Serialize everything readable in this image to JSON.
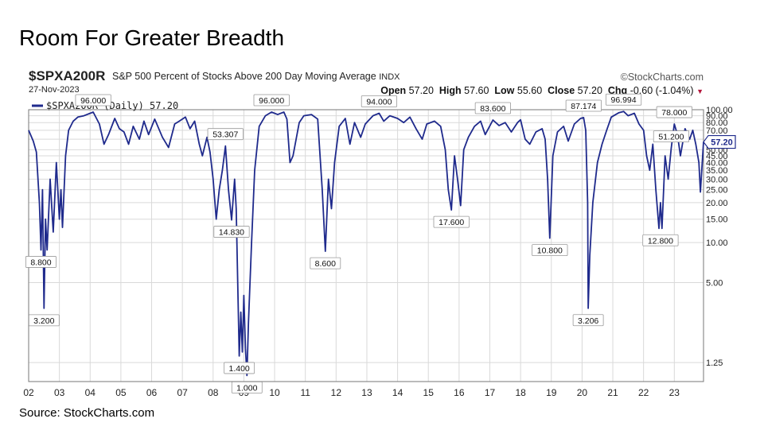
{
  "slide_title": "Room For Greater Breadth",
  "source_note": "Source: StockCharts.com",
  "header": {
    "symbol": "$SPXA200R",
    "description": "S&P 500 Percent of Stocks Above 200 Day Moving Average",
    "exchange": "INDX",
    "brand": "©StockCharts.com",
    "date": "27-Nov-2023",
    "open_label": "Open",
    "open_value": "57.20",
    "high_label": "High",
    "high_value": "57.60",
    "low_label": "Low",
    "low_value": "55.60",
    "close_label": "Close",
    "close_value": "57.20",
    "chg_label": "Chg",
    "chg_value": "-0.60 (-1.04%)",
    "chg_arrow": "▼"
  },
  "legend": "$SPXA200R (Daily) 57.20",
  "colors": {
    "line": "#1f2a8c",
    "grid": "#d9d9d9",
    "label_border": "#999999",
    "badge_bg": "#1f2a8c"
  },
  "chart_data": {
    "type": "line",
    "title": "S&P 500 Percent of Stocks Above 200 Day Moving Average",
    "series_name": "$SPXA200R (Daily)",
    "y_scale": "log",
    "ylim": [
      0.9,
      100
    ],
    "xlim": [
      2002.0,
      2023.95
    ],
    "x_ticks": [
      {
        "value": 2002,
        "label": "02"
      },
      {
        "value": 2003,
        "label": "03"
      },
      {
        "value": 2004,
        "label": "04"
      },
      {
        "value": 2005,
        "label": "05"
      },
      {
        "value": 2006,
        "label": "06"
      },
      {
        "value": 2007,
        "label": "07"
      },
      {
        "value": 2008,
        "label": "08"
      },
      {
        "value": 2009,
        "label": "09"
      },
      {
        "value": 2010,
        "label": "10"
      },
      {
        "value": 2011,
        "label": "11"
      },
      {
        "value": 2012,
        "label": "12"
      },
      {
        "value": 2013,
        "label": "13"
      },
      {
        "value": 2014,
        "label": "14"
      },
      {
        "value": 2015,
        "label": "15"
      },
      {
        "value": 2016,
        "label": "16"
      },
      {
        "value": 2017,
        "label": "17"
      },
      {
        "value": 2018,
        "label": "18"
      },
      {
        "value": 2019,
        "label": "19"
      },
      {
        "value": 2020,
        "label": "20"
      },
      {
        "value": 2021,
        "label": "21"
      },
      {
        "value": 2022,
        "label": "22"
      },
      {
        "value": 2023,
        "label": "23"
      }
    ],
    "y_ticks": [
      {
        "value": 100,
        "label": "100.00"
      },
      {
        "value": 90,
        "label": "90.00"
      },
      {
        "value": 80,
        "label": "80.00"
      },
      {
        "value": 70,
        "label": "70.00"
      },
      {
        "value": 60,
        "label": "60.00"
      },
      {
        "value": 50,
        "label": "50.00"
      },
      {
        "value": 45,
        "label": "45.00"
      },
      {
        "value": 40,
        "label": "40.00"
      },
      {
        "value": 35,
        "label": "35.00"
      },
      {
        "value": 30,
        "label": "30.00"
      },
      {
        "value": 25,
        "label": "25.00"
      },
      {
        "value": 20,
        "label": "20.00"
      },
      {
        "value": 15,
        "label": "15.00"
      },
      {
        "value": 10,
        "label": "10.00"
      },
      {
        "value": 5,
        "label": "5.00"
      },
      {
        "value": 1.25,
        "label": "1.25"
      }
    ],
    "points": [
      [
        2002.0,
        70
      ],
      [
        2002.15,
        58
      ],
      [
        2002.25,
        48
      ],
      [
        2002.35,
        20
      ],
      [
        2002.4,
        8.8
      ],
      [
        2002.45,
        25
      ],
      [
        2002.5,
        3.2
      ],
      [
        2002.55,
        15
      ],
      [
        2002.6,
        8.8
      ],
      [
        2002.7,
        30
      ],
      [
        2002.8,
        12
      ],
      [
        2002.9,
        40
      ],
      [
        2003.0,
        15
      ],
      [
        2003.05,
        25
      ],
      [
        2003.1,
        13
      ],
      [
        2003.2,
        45
      ],
      [
        2003.3,
        70
      ],
      [
        2003.45,
        82
      ],
      [
        2003.6,
        88
      ],
      [
        2003.8,
        90
      ],
      [
        2004.0,
        94
      ],
      [
        2004.1,
        96
      ],
      [
        2004.3,
        78
      ],
      [
        2004.45,
        55
      ],
      [
        2004.6,
        65
      ],
      [
        2004.8,
        86
      ],
      [
        2004.95,
        72
      ],
      [
        2005.1,
        68
      ],
      [
        2005.25,
        55
      ],
      [
        2005.4,
        75
      ],
      [
        2005.6,
        60
      ],
      [
        2005.75,
        82
      ],
      [
        2005.9,
        65
      ],
      [
        2006.1,
        85
      ],
      [
        2006.35,
        62
      ],
      [
        2006.55,
        52
      ],
      [
        2006.75,
        78
      ],
      [
        2006.9,
        82
      ],
      [
        2007.1,
        88
      ],
      [
        2007.25,
        72
      ],
      [
        2007.4,
        82
      ],
      [
        2007.55,
        55
      ],
      [
        2007.65,
        45
      ],
      [
        2007.8,
        62
      ],
      [
        2007.9,
        48
      ],
      [
        2008.0,
        30
      ],
      [
        2008.1,
        15
      ],
      [
        2008.2,
        25
      ],
      [
        2008.3,
        35
      ],
      [
        2008.4,
        53.3
      ],
      [
        2008.5,
        25
      ],
      [
        2008.6,
        14.8
      ],
      [
        2008.7,
        30
      ],
      [
        2008.75,
        18
      ],
      [
        2008.8,
        5
      ],
      [
        2008.85,
        1.4
      ],
      [
        2008.9,
        3
      ],
      [
        2008.95,
        1.5
      ],
      [
        2009.0,
        4
      ],
      [
        2009.05,
        1.6
      ],
      [
        2009.1,
        1.0
      ],
      [
        2009.15,
        2.5
      ],
      [
        2009.25,
        10
      ],
      [
        2009.35,
        35
      ],
      [
        2009.5,
        75
      ],
      [
        2009.7,
        90
      ],
      [
        2009.9,
        96
      ],
      [
        2010.1,
        92
      ],
      [
        2010.3,
        96
      ],
      [
        2010.4,
        85
      ],
      [
        2010.5,
        40
      ],
      [
        2010.6,
        45
      ],
      [
        2010.8,
        80
      ],
      [
        2010.95,
        90
      ],
      [
        2011.2,
        92
      ],
      [
        2011.4,
        85
      ],
      [
        2011.55,
        25
      ],
      [
        2011.65,
        8.6
      ],
      [
        2011.75,
        30
      ],
      [
        2011.85,
        18
      ],
      [
        2011.95,
        40
      ],
      [
        2012.1,
        75
      ],
      [
        2012.3,
        86
      ],
      [
        2012.45,
        55
      ],
      [
        2012.6,
        80
      ],
      [
        2012.8,
        62
      ],
      [
        2012.95,
        78
      ],
      [
        2013.2,
        90
      ],
      [
        2013.4,
        94
      ],
      [
        2013.55,
        82
      ],
      [
        2013.75,
        90
      ],
      [
        2014.0,
        86
      ],
      [
        2014.2,
        80
      ],
      [
        2014.4,
        88
      ],
      [
        2014.6,
        72
      ],
      [
        2014.8,
        60
      ],
      [
        2014.95,
        78
      ],
      [
        2015.2,
        82
      ],
      [
        2015.4,
        75
      ],
      [
        2015.55,
        50
      ],
      [
        2015.65,
        25
      ],
      [
        2015.75,
        17.6
      ],
      [
        2015.85,
        45
      ],
      [
        2015.95,
        30
      ],
      [
        2016.05,
        19
      ],
      [
        2016.15,
        50
      ],
      [
        2016.3,
        62
      ],
      [
        2016.5,
        75
      ],
      [
        2016.7,
        82
      ],
      [
        2016.85,
        65
      ],
      [
        2016.95,
        72
      ],
      [
        2017.1,
        83.6
      ],
      [
        2017.3,
        76
      ],
      [
        2017.5,
        80
      ],
      [
        2017.7,
        68
      ],
      [
        2017.9,
        80
      ],
      [
        2018.0,
        84
      ],
      [
        2018.15,
        60
      ],
      [
        2018.3,
        55
      ],
      [
        2018.5,
        68
      ],
      [
        2018.7,
        72
      ],
      [
        2018.8,
        60
      ],
      [
        2018.88,
        30
      ],
      [
        2018.95,
        10.8
      ],
      [
        2019.05,
        45
      ],
      [
        2019.2,
        68
      ],
      [
        2019.4,
        75
      ],
      [
        2019.55,
        58
      ],
      [
        2019.75,
        78
      ],
      [
        2019.95,
        86
      ],
      [
        2020.05,
        87.2
      ],
      [
        2020.12,
        70
      ],
      [
        2020.18,
        20
      ],
      [
        2020.2,
        3.2
      ],
      [
        2020.25,
        8
      ],
      [
        2020.35,
        20
      ],
      [
        2020.5,
        40
      ],
      [
        2020.65,
        55
      ],
      [
        2020.8,
        70
      ],
      [
        2020.95,
        88
      ],
      [
        2021.2,
        95
      ],
      [
        2021.35,
        97
      ],
      [
        2021.5,
        90
      ],
      [
        2021.7,
        94
      ],
      [
        2021.85,
        78
      ],
      [
        2022.0,
        70
      ],
      [
        2022.1,
        45
      ],
      [
        2022.2,
        35
      ],
      [
        2022.3,
        55
      ],
      [
        2022.4,
        25
      ],
      [
        2022.5,
        12.8
      ],
      [
        2022.55,
        20
      ],
      [
        2022.6,
        12.8
      ],
      [
        2022.7,
        45
      ],
      [
        2022.8,
        30
      ],
      [
        2022.9,
        51.2
      ],
      [
        2023.0,
        78
      ],
      [
        2023.1,
        65
      ],
      [
        2023.2,
        45
      ],
      [
        2023.35,
        72
      ],
      [
        2023.5,
        60
      ],
      [
        2023.6,
        70
      ],
      [
        2023.7,
        55
      ],
      [
        2023.8,
        40
      ],
      [
        2023.85,
        24
      ],
      [
        2023.95,
        57.2
      ]
    ],
    "annotations": [
      {
        "x": 2002.4,
        "y": 8.8,
        "label": "8.800",
        "pos": "below"
      },
      {
        "x": 2002.5,
        "y": 3.2,
        "label": "3.200",
        "pos": "below"
      },
      {
        "x": 2004.1,
        "y": 96,
        "label": "96.000",
        "pos": "above"
      },
      {
        "x": 2008.4,
        "y": 53.3,
        "label": "53.307",
        "pos": "above"
      },
      {
        "x": 2008.6,
        "y": 14.83,
        "label": "14.830",
        "pos": "below"
      },
      {
        "x": 2008.85,
        "y": 1.4,
        "label": "1.400",
        "pos": "below"
      },
      {
        "x": 2009.1,
        "y": 1.0,
        "label": "1.000",
        "pos": "below"
      },
      {
        "x": 2009.9,
        "y": 96,
        "label": "96.000",
        "pos": "above"
      },
      {
        "x": 2011.65,
        "y": 8.6,
        "label": "8.600",
        "pos": "below"
      },
      {
        "x": 2013.4,
        "y": 94,
        "label": "94.000",
        "pos": "above"
      },
      {
        "x": 2015.75,
        "y": 17.6,
        "label": "17.600",
        "pos": "below"
      },
      {
        "x": 2017.1,
        "y": 83.6,
        "label": "83.600",
        "pos": "above"
      },
      {
        "x": 2018.95,
        "y": 10.8,
        "label": "10.800",
        "pos": "below"
      },
      {
        "x": 2020.05,
        "y": 87.174,
        "label": "87.174",
        "pos": "above"
      },
      {
        "x": 2020.2,
        "y": 3.206,
        "label": "3.206",
        "pos": "below"
      },
      {
        "x": 2021.35,
        "y": 96.994,
        "label": "96.994",
        "pos": "above"
      },
      {
        "x": 2022.55,
        "y": 12.8,
        "label": "12.800",
        "pos": "below"
      },
      {
        "x": 2022.9,
        "y": 51.2,
        "label": "51.200",
        "pos": "above"
      },
      {
        "x": 2023.0,
        "y": 78,
        "label": "78.000",
        "pos": "above"
      }
    ],
    "last_value_badge": "57.20"
  }
}
